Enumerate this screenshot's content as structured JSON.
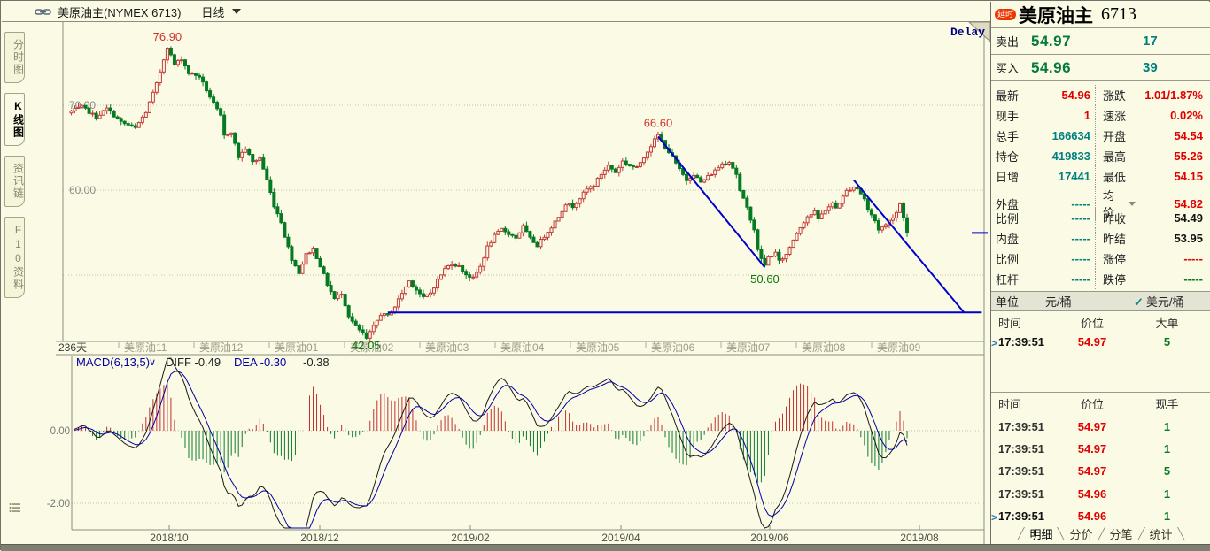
{
  "header": {
    "symbol_title": "美原油主(NYMEX 6713)",
    "period": "日线"
  },
  "sidebar": {
    "tabs": [
      {
        "label": "分时图",
        "active": false
      },
      {
        "label": "K线图",
        "active": true
      },
      {
        "label": "资讯链",
        "active": false
      },
      {
        "label": "F10资料",
        "active": false
      }
    ]
  },
  "chart": {
    "delay_label": "Delay",
    "period_count": "236天",
    "y_axis_labels": [
      "70.00",
      "60.00"
    ],
    "contract_labels": [
      "美原油11",
      "美原油12",
      "美原油01",
      "美原油02",
      "美原油03",
      "美原油04",
      "美原油05",
      "美原油06",
      "美原油07",
      "美原油08",
      "美原油09"
    ],
    "date_labels": [
      "2018/10",
      "2018/12",
      "2019/02",
      "2019/04",
      "2019/06",
      "2019/08"
    ],
    "macd_header": {
      "name": "MACD(6,13,5)",
      "chevron": "∨",
      "diff_label": "DIFF",
      "diff": "-0.49",
      "dea_label": "DEA",
      "dea": "-0.30",
      "macd": "-0.38"
    },
    "macd_y_labels": [
      "0.00",
      "-2.00"
    ],
    "annotations": {
      "high": "76.90",
      "swing_high": "66.60",
      "swing_low": "50.60",
      "low": "42.05"
    }
  },
  "chart_data": {
    "type": "candlestick",
    "symbol": "美原油主 (NYMEX 6713)",
    "period": "日线",
    "candle_count": 236,
    "visible_range": "236天",
    "y_gridlines": [
      70,
      60,
      50
    ],
    "key_points": {
      "high": 76.9,
      "swing_high": 66.6,
      "swing_low": 50.6,
      "low": 42.05,
      "last_close": 54.96
    },
    "price_path_anchors": [
      [
        0,
        69.3
      ],
      [
        3,
        69.8
      ],
      [
        7,
        68.6
      ],
      [
        10,
        69.6
      ],
      [
        14,
        68.0
      ],
      [
        18,
        67.3
      ],
      [
        21,
        69.2
      ],
      [
        24,
        72.5
      ],
      [
        27,
        76.9
      ],
      [
        29,
        74.8
      ],
      [
        31,
        75.5
      ],
      [
        33,
        73.8
      ],
      [
        36,
        73.4
      ],
      [
        38,
        71.8
      ],
      [
        40,
        70.2
      ],
      [
        42,
        68.7
      ],
      [
        43,
        66.4
      ],
      [
        45,
        66.9
      ],
      [
        47,
        63.9
      ],
      [
        49,
        64.9
      ],
      [
        51,
        63.3
      ],
      [
        53,
        63.8
      ],
      [
        55,
        61.2
      ],
      [
        57,
        58.2
      ],
      [
        59,
        56.3
      ],
      [
        60,
        54.6
      ],
      [
        62,
        51.9
      ],
      [
        64,
        50.3
      ],
      [
        66,
        52.4
      ],
      [
        68,
        53.1
      ],
      [
        70,
        51.1
      ],
      [
        72,
        48.9
      ],
      [
        74,
        47.2
      ],
      [
        76,
        47.9
      ],
      [
        78,
        45.2
      ],
      [
        80,
        43.9
      ],
      [
        82,
        43.1
      ],
      [
        83,
        42.5
      ],
      [
        85,
        43.9
      ],
      [
        87,
        45.4
      ],
      [
        89,
        45.2
      ],
      [
        91,
        46.3
      ],
      [
        93,
        47.9
      ],
      [
        95,
        49.3
      ],
      [
        97,
        48.3
      ],
      [
        99,
        47.3
      ],
      [
        101,
        47.9
      ],
      [
        103,
        49.4
      ],
      [
        105,
        50.7
      ],
      [
        107,
        51.4
      ],
      [
        109,
        51.0
      ],
      [
        111,
        50.1
      ],
      [
        113,
        49.6
      ],
      [
        115,
        51.0
      ],
      [
        117,
        53.3
      ],
      [
        119,
        54.6
      ],
      [
        121,
        55.4
      ],
      [
        123,
        54.9
      ],
      [
        125,
        54.4
      ],
      [
        127,
        55.7
      ],
      [
        129,
        54.3
      ],
      [
        131,
        53.5
      ],
      [
        133,
        54.6
      ],
      [
        135,
        55.7
      ],
      [
        137,
        56.9
      ],
      [
        139,
        58.4
      ],
      [
        141,
        58.1
      ],
      [
        143,
        59.1
      ],
      [
        145,
        60.1
      ],
      [
        147,
        60.6
      ],
      [
        149,
        61.9
      ],
      [
        151,
        62.9
      ],
      [
        153,
        62.1
      ],
      [
        155,
        63.4
      ],
      [
        157,
        62.9
      ],
      [
        159,
        62.6
      ],
      [
        160,
        63.3
      ],
      [
        162,
        64.6
      ],
      [
        164,
        65.9
      ],
      [
        165,
        66.5
      ],
      [
        167,
        65.1
      ],
      [
        169,
        63.9
      ],
      [
        171,
        62.4
      ],
      [
        173,
        61.2
      ],
      [
        175,
        61.9
      ],
      [
        177,
        60.9
      ],
      [
        179,
        61.6
      ],
      [
        181,
        62.3
      ],
      [
        183,
        63.1
      ],
      [
        185,
        63.4
      ],
      [
        187,
        61.9
      ],
      [
        188,
        59.9
      ],
      [
        190,
        57.9
      ],
      [
        192,
        55.4
      ],
      [
        193,
        52.9
      ],
      [
        195,
        51.1
      ],
      [
        196,
        52.1
      ],
      [
        198,
        52.6
      ],
      [
        199,
        51.6
      ],
      [
        201,
        52.4
      ],
      [
        203,
        54.2
      ],
      [
        205,
        55.7
      ],
      [
        207,
        56.9
      ],
      [
        209,
        57.4
      ],
      [
        210,
        56.6
      ],
      [
        212,
        57.7
      ],
      [
        214,
        58.4
      ],
      [
        215,
        57.9
      ],
      [
        217,
        59.2
      ],
      [
        218,
        59.9
      ],
      [
        220,
        60.4
      ],
      [
        221,
        60.2
      ],
      [
        223,
        59.0
      ],
      [
        224,
        57.7
      ],
      [
        226,
        56.4
      ],
      [
        227,
        55.4
      ],
      [
        229,
        55.9
      ],
      [
        230,
        56.4
      ],
      [
        232,
        57.4
      ],
      [
        233,
        58.4
      ],
      [
        234,
        56.9
      ],
      [
        235,
        54.96
      ]
    ],
    "trendlines_price": [
      {
        "kind": "down1",
        "from_idx": 165,
        "from_price": 66.3,
        "to_idx": 195,
        "to_price": 50.9
      },
      {
        "kind": "down2",
        "from_idx": 220,
        "from_price": 61.2,
        "to_idx": 251,
        "to_price": 45.6
      },
      {
        "kind": "support",
        "from_idx": 89,
        "to_idx": 256,
        "price": 45.6
      },
      {
        "kind": "last_price_marker",
        "price": 54.96
      }
    ],
    "macd": {
      "params": [
        6,
        13,
        5
      ],
      "diff": -0.49,
      "dea": -0.3,
      "hist": -0.38,
      "y_gridlines": [
        0,
        -2
      ]
    }
  },
  "panel": {
    "delay_badge": "延时",
    "title": "美原油主",
    "code": "6713",
    "ask": {
      "label": "卖出",
      "price": "54.97",
      "qty": "17"
    },
    "bid": {
      "label": "买入",
      "price": "54.96",
      "qty": "39"
    },
    "quote_rows": [
      {
        "ll": "最新",
        "lv": "54.96",
        "rl": "涨跌",
        "rv": "1.01/1.87%"
      },
      {
        "ll": "现手",
        "lv": "1",
        "rl": "速涨",
        "rv": "0.02%"
      },
      {
        "ll": "总手",
        "lv": "166634",
        "rl": "开盘",
        "rv": "54.54"
      },
      {
        "ll": "持仓",
        "lv": "419833",
        "rl": "最高",
        "rv": "55.26"
      },
      {
        "ll": "日增",
        "lv": "17441",
        "rl": "最低",
        "rv": "54.15"
      },
      {
        "ll": "外盘",
        "lv": "-----",
        "rl": "均价",
        "rv": "54.82"
      },
      {
        "ll": "比例",
        "lv": "-----",
        "rl": "昨收",
        "rv": "54.49"
      },
      {
        "ll": "内盘",
        "lv": "-----",
        "rl": "昨结",
        "rv": "53.95"
      },
      {
        "ll": "比例",
        "lv": "-----",
        "rl": "涨停",
        "rv": "-----"
      },
      {
        "ll": "杠杆",
        "lv": "-----",
        "rl": "跌停",
        "rv": "-----"
      }
    ],
    "unit": {
      "label": "单位",
      "opt1": "元/桶",
      "check": "✓",
      "opt2": "美元/桶"
    },
    "big_table": {
      "headers": [
        "时间",
        "价位",
        "大单"
      ],
      "rows": [
        {
          "marker": ">",
          "time": "17:39:51",
          "price": "54.97",
          "qty": "5"
        }
      ]
    },
    "tick_table": {
      "headers": [
        "时间",
        "价位",
        "现手"
      ],
      "rows": [
        {
          "time": "17:39:51",
          "price": "54.97",
          "qty": "1"
        },
        {
          "time": "17:39:51",
          "price": "54.97",
          "qty": "1"
        },
        {
          "time": "17:39:51",
          "price": "54.97",
          "qty": "5"
        },
        {
          "time": "17:39:51",
          "price": "54.96",
          "qty": "1"
        },
        {
          "marker": ">",
          "time": "17:39:51",
          "price": "54.96",
          "qty": "1"
        }
      ]
    },
    "tabs": [
      {
        "label": "明细",
        "active": true
      },
      {
        "label": "分价",
        "active": false
      },
      {
        "label": "分笔",
        "active": false
      },
      {
        "label": "统计",
        "active": false
      }
    ]
  },
  "colors": {
    "background": "#fbfbe5",
    "up_candle": "#c23a3a",
    "down_candle": "#067a23",
    "trendline_blue": "#0000cd",
    "value_red": "#e00000",
    "value_teal": "#008080",
    "value_green": "#067a23",
    "macd_diff_line": "#1a1a1a",
    "macd_dea_line": "#0000a6"
  }
}
